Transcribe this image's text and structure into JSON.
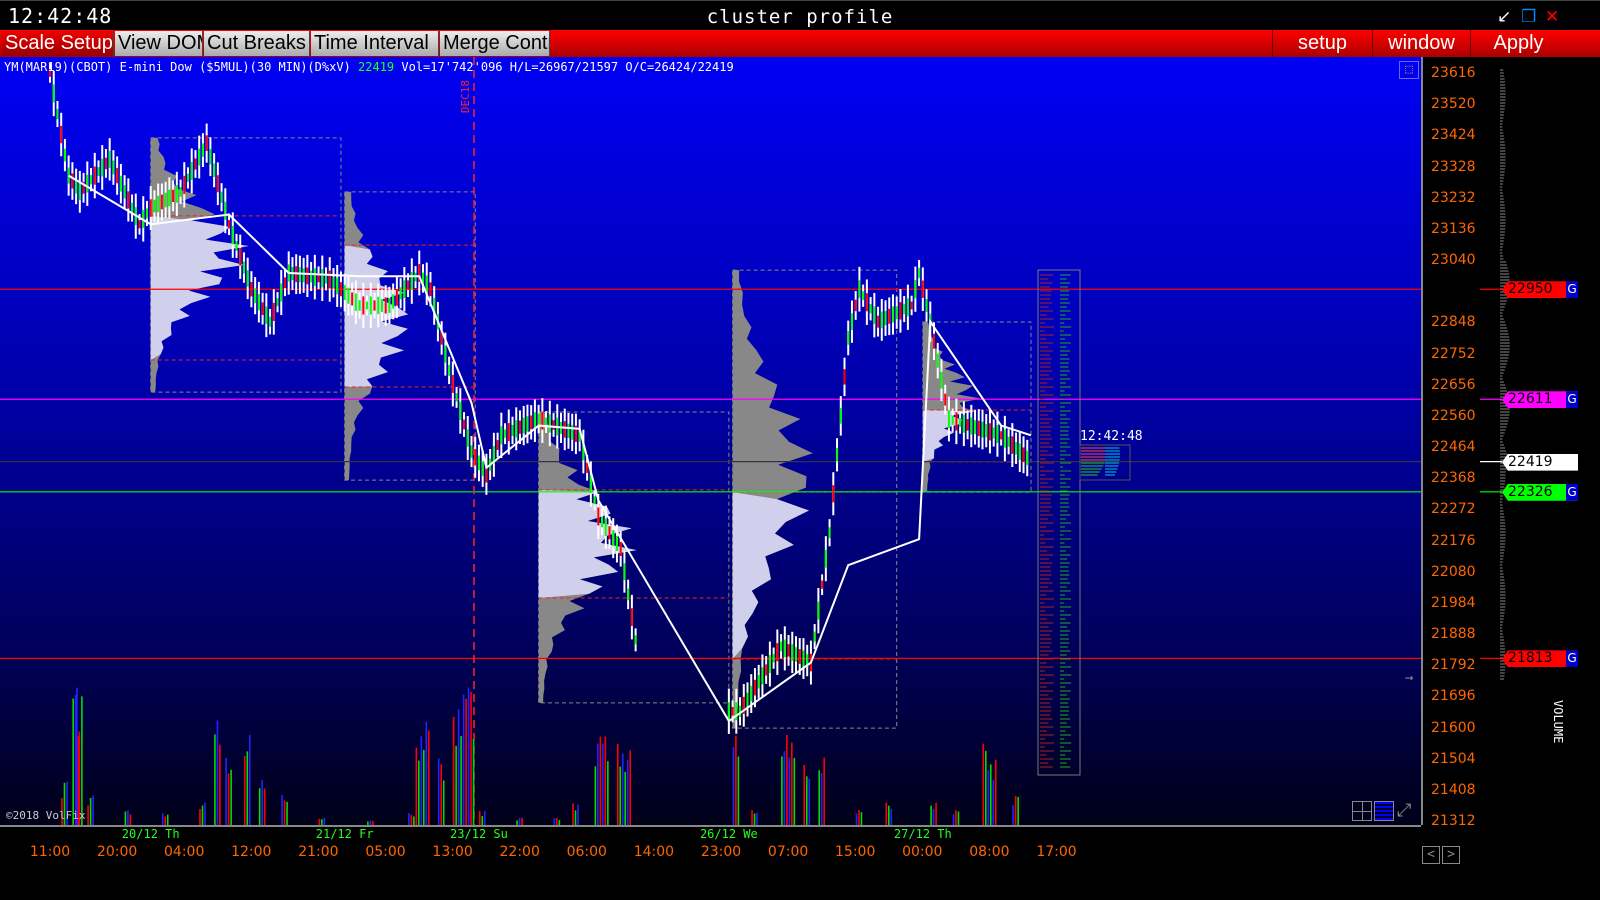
{
  "titlebar": {
    "clock": "12:42:48",
    "title": "cluster profile",
    "minimize": "↙",
    "restore": "❐",
    "close": "✕"
  },
  "toolbar": {
    "left": [
      "Scale Setup",
      "View DOM",
      "Cut Breaks",
      "Time Interval",
      "Merge Contr"
    ],
    "right": [
      "setup",
      "window",
      "Apply"
    ],
    "active": "Scale Setup"
  },
  "info": {
    "symbol": "YM(MAR19)(CBOT) E-mini Dow ($5MUL)(30 MIN)(D%xV)",
    "last": "22419",
    "stats": "Vol=17'742'096 H/L=26967/21597 O/C=26424/22419"
  },
  "copyright": "©2018 VolFix",
  "contract_break": "DEC18",
  "live_clock": "12:42:48",
  "volume_label": "VOLUME",
  "colors": {
    "background_top": "#0000f4",
    "background_bottom": "#000018",
    "up": "#00ff00",
    "down": "#ff0000",
    "neutral": "#0000ff",
    "axis_text": "#ff6600",
    "vwap": "#ffffff"
  },
  "chart_data": {
    "type": "candlestick",
    "y_ticks": [
      23616,
      23520,
      23424,
      23328,
      23232,
      23136,
      23040,
      22848,
      22752,
      22656,
      22560,
      22464,
      22368,
      22272,
      22176,
      22080,
      21984,
      21888,
      21792,
      21696,
      21600,
      21504,
      21408,
      21312
    ],
    "ylim": [
      21312,
      23616
    ],
    "x_ticks": [
      "11:00",
      "20:00",
      "04:00",
      "12:00",
      "21:00",
      "05:00",
      "13:00",
      "22:00",
      "06:00",
      "14:00",
      "23:00",
      "07:00",
      "15:00",
      "00:00",
      "08:00",
      "17:00"
    ],
    "date_labels": [
      {
        "label": "20/12 Th",
        "bar": 27
      },
      {
        "label": "21/12 Fr",
        "bar": 79
      },
      {
        "label": "23/12 Su",
        "bar": 115
      },
      {
        "label": "26/12 We",
        "bar": 182
      },
      {
        "label": "27/12 Th",
        "bar": 234
      }
    ],
    "levels": [
      {
        "price": "22950",
        "color": "#ff0000",
        "g": true
      },
      {
        "price": "22611",
        "color": "#ff00ff",
        "g": true
      },
      {
        "price": "22419",
        "color": "#ffffff",
        "g": false
      },
      {
        "price": "22326",
        "color": "#00ff00",
        "g": true
      },
      {
        "price": "21813",
        "color": "#ff0000",
        "g": true
      }
    ],
    "price_path": [
      [
        0,
        23616
      ],
      [
        5,
        23300
      ],
      [
        8,
        23250
      ],
      [
        16,
        23350
      ],
      [
        24,
        23150
      ],
      [
        27,
        23200
      ],
      [
        35,
        23250
      ],
      [
        42,
        23400
      ],
      [
        48,
        23150
      ],
      [
        54,
        22950
      ],
      [
        59,
        22850
      ],
      [
        64,
        23000
      ],
      [
        75,
        22980
      ],
      [
        83,
        22900
      ],
      [
        91,
        22900
      ],
      [
        99,
        23000
      ],
      [
        102,
        22950
      ],
      [
        107,
        22700
      ],
      [
        113,
        22450
      ],
      [
        117,
        22380
      ],
      [
        121,
        22500
      ],
      [
        131,
        22550
      ],
      [
        142,
        22500
      ],
      [
        147,
        22250
      ],
      [
        153,
        22150
      ],
      [
        158,
        21800
      ],
      [
        182,
        21650
      ],
      [
        185,
        21650
      ],
      [
        196,
        21850
      ],
      [
        204,
        21800
      ],
      [
        209,
        22200
      ],
      [
        214,
        22800
      ],
      [
        217,
        22950
      ],
      [
        222,
        22850
      ],
      [
        231,
        22900
      ],
      [
        233,
        23000
      ],
      [
        236,
        22850
      ],
      [
        241,
        22550
      ],
      [
        255,
        22500
      ],
      [
        263,
        22420
      ]
    ],
    "vwap": [
      [
        5,
        23300
      ],
      [
        27,
        23150
      ],
      [
        48,
        23180
      ],
      [
        64,
        23000
      ],
      [
        83,
        22990
      ],
      [
        99,
        22990
      ],
      [
        113,
        22600
      ],
      [
        117,
        22400
      ],
      [
        131,
        22530
      ],
      [
        142,
        22520
      ],
      [
        147,
        22300
      ],
      [
        182,
        21620
      ],
      [
        204,
        21800
      ],
      [
        214,
        22100
      ],
      [
        233,
        22180
      ],
      [
        236,
        22850
      ],
      [
        255,
        22530
      ],
      [
        263,
        22500
      ]
    ],
    "profiles": [
      {
        "start": 27,
        "end": 78,
        "high": 23416,
        "low": 22633,
        "va_high": 23176,
        "va_low": 22732
      },
      {
        "start": 79,
        "end": 114,
        "high": 23250,
        "low": 22362,
        "va_high": 23086,
        "va_low": 22649
      },
      {
        "start": 131,
        "end": 182,
        "high": 22572,
        "low": 21676,
        "va_high": 22332,
        "va_low": 21999
      },
      {
        "start": 183,
        "end": 227,
        "high": 23009,
        "low": 21598,
        "va_high": 22325,
        "va_low": 21811
      },
      {
        "start": 234,
        "end": 263,
        "high": 22849,
        "low": 22325,
        "va_high": 22578,
        "va_low": 22418
      }
    ],
    "volume": [
      [
        3,
        30
      ],
      [
        6,
        90
      ],
      [
        7,
        95
      ],
      [
        10,
        20
      ],
      [
        20,
        10
      ],
      [
        30,
        8
      ],
      [
        40,
        15
      ],
      [
        44,
        70
      ],
      [
        47,
        45
      ],
      [
        52,
        60
      ],
      [
        56,
        30
      ],
      [
        62,
        20
      ],
      [
        72,
        5
      ],
      [
        85,
        3
      ],
      [
        96,
        8
      ],
      [
        98,
        60
      ],
      [
        100,
        70
      ],
      [
        104,
        45
      ],
      [
        108,
        80
      ],
      [
        110,
        90
      ],
      [
        112,
        95
      ],
      [
        115,
        10
      ],
      [
        125,
        5
      ],
      [
        135,
        5
      ],
      [
        140,
        15
      ],
      [
        146,
        60
      ],
      [
        148,
        60
      ],
      [
        152,
        55
      ],
      [
        154,
        50
      ],
      [
        183,
        60
      ],
      [
        188,
        10
      ],
      [
        196,
        60
      ],
      [
        198,
        55
      ],
      [
        202,
        40
      ],
      [
        206,
        45
      ],
      [
        216,
        10
      ],
      [
        224,
        15
      ],
      [
        236,
        15
      ],
      [
        242,
        10
      ],
      [
        250,
        55
      ],
      [
        252,
        45
      ],
      [
        258,
        20
      ]
    ]
  }
}
